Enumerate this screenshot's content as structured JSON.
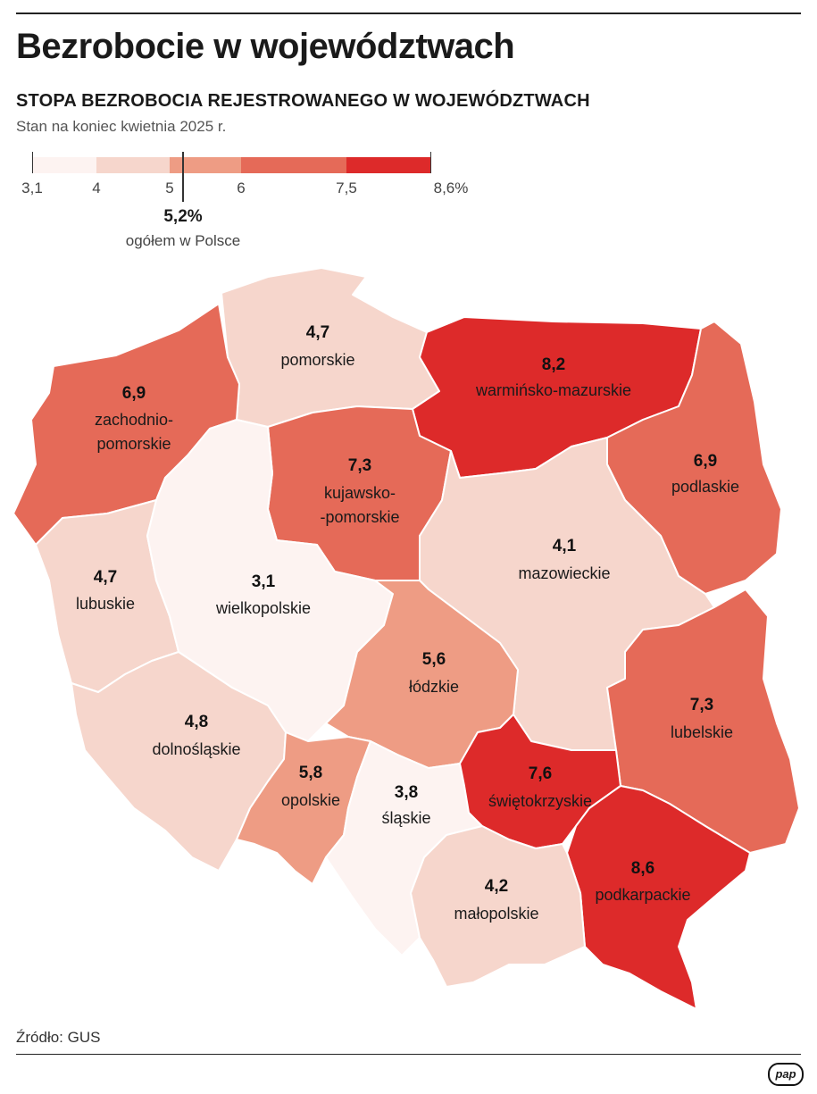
{
  "title": "Bezrobocie w województwach",
  "subtitle": "STOPA BEZROBOCIA REJESTROWANEGO W WOJEWÓDZTWACH",
  "note": "Stan na koniec kwietnia 2025 r.",
  "legend": {
    "ticks": [
      "3,1",
      "4",
      "5",
      "6",
      "7,5",
      "8,6%"
    ],
    "colors": [
      "#fdf3f1",
      "#f6d6cc",
      "#ee9c84",
      "#e56a58",
      "#dd2a2a"
    ],
    "average_value": "5,2%",
    "average_label": "ogółem w Polsce"
  },
  "chart_data": {
    "type": "choropleth",
    "unit": "%",
    "regions": [
      {
        "name": "pomorskie",
        "value": "4,7",
        "color": "#f6d6cc"
      },
      {
        "name": "warmińsko-mazurskie",
        "value": "8,2",
        "color": "#dd2a2a"
      },
      {
        "name_lines": [
          "zachodnio-",
          "pomorskie"
        ],
        "value": "6,9",
        "color": "#e56a58"
      },
      {
        "name_lines": [
          "kujawsko-",
          "-pomorskie"
        ],
        "value": "7,3",
        "color": "#e56a58"
      },
      {
        "name": "podlaskie",
        "value": "6,9",
        "color": "#e56a58"
      },
      {
        "name": "lubuskie",
        "value": "4,7",
        "color": "#f6d6cc"
      },
      {
        "name": "wielkopolskie",
        "value": "3,1",
        "color": "#fdf3f1"
      },
      {
        "name": "mazowieckie",
        "value": "4,1",
        "color": "#f6d6cc"
      },
      {
        "name": "łódzkie",
        "value": "5,6",
        "color": "#ee9c84"
      },
      {
        "name": "lubelskie",
        "value": "7,3",
        "color": "#e56a58"
      },
      {
        "name": "dolnośląskie",
        "value": "4,8",
        "color": "#f6d6cc"
      },
      {
        "name": "opolskie",
        "value": "5,8",
        "color": "#ee9c84"
      },
      {
        "name": "śląskie",
        "value": "3,8",
        "color": "#fdf3f1"
      },
      {
        "name": "świętokrzyskie",
        "value": "7,6",
        "color": "#dd2a2a"
      },
      {
        "name": "podkarpackie",
        "value": "8,6",
        "color": "#dd2a2a"
      },
      {
        "name": "małopolskie",
        "value": "4,2",
        "color": "#f6d6cc"
      }
    ]
  },
  "source": "Źródło: GUS",
  "logo": "pap"
}
